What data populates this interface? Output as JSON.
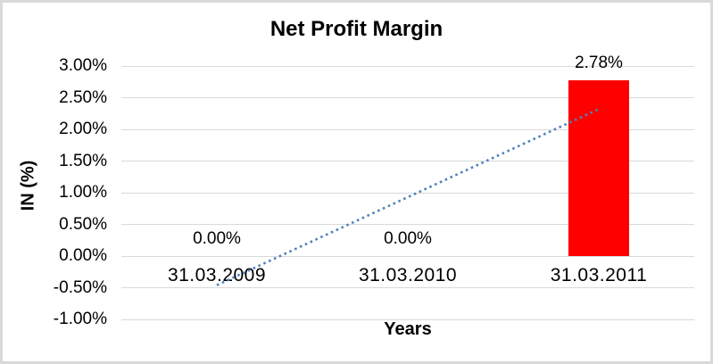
{
  "chart_data": {
    "type": "bar",
    "title": "Net Profit Margin",
    "xlabel": "Years",
    "ylabel": "IN (%)",
    "categories": [
      "31.03.2009",
      "31.03.2010",
      "31.03.2011"
    ],
    "series": [
      {
        "name": "Net Profit Margin",
        "values": [
          0.0,
          0.0,
          2.78
        ],
        "data_labels": [
          "0.00%",
          "0.00%",
          "2.78%"
        ],
        "color": "#ff0000"
      }
    ],
    "ylim": [
      -1.0,
      3.0
    ],
    "y_ticks": [
      {
        "value": 3.0,
        "label": "3.00%"
      },
      {
        "value": 2.5,
        "label": "2.50%"
      },
      {
        "value": 2.0,
        "label": "2.00%"
      },
      {
        "value": 1.5,
        "label": "1.50%"
      },
      {
        "value": 1.0,
        "label": "1.00%"
      },
      {
        "value": 0.5,
        "label": "0.50%"
      },
      {
        "value": 0.0,
        "label": "0.00%"
      },
      {
        "value": -0.5,
        "label": "-0.50%"
      },
      {
        "value": -1.0,
        "label": "-1.00%"
      }
    ],
    "grid": true,
    "legend": "none",
    "gridline_color": "#d9d9d9",
    "trendline": {
      "type": "linear",
      "style": "dotted",
      "color": "#4f81bd",
      "start_value": -0.46,
      "end_value": 2.32
    }
  }
}
